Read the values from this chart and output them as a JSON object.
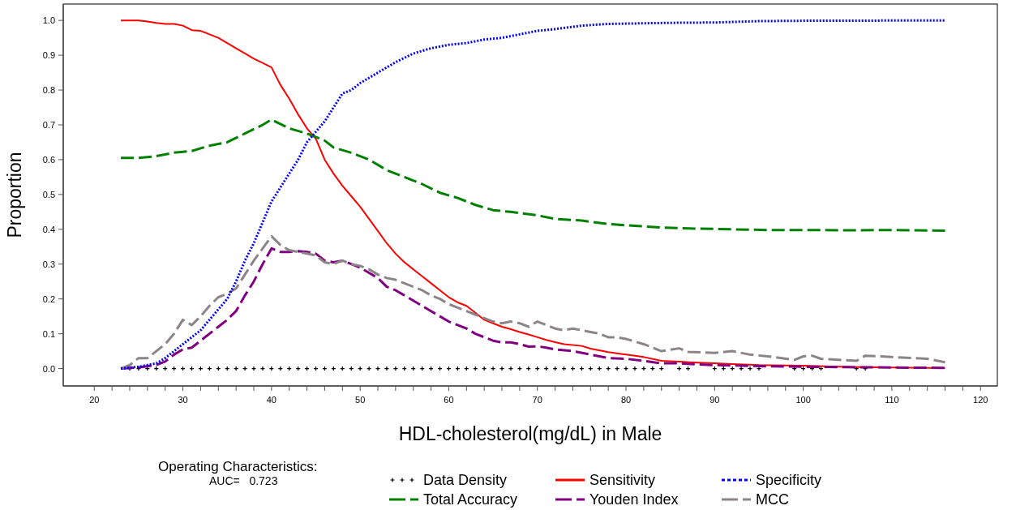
{
  "chart_data": {
    "type": "line",
    "xlabel": "HDL-cholesterol(mg/dL) in Male",
    "ylabel": "Proportion",
    "xlim": [
      16.5,
      121.9
    ],
    "ylim": [
      -0.05,
      1.047
    ],
    "xticks": [
      20,
      {
        "value": 22,
        "label": null
      },
      {
        "value": 24,
        "label": null
      },
      {
        "value": 26,
        "label": null
      },
      {
        "value": 28,
        "label": null
      },
      30,
      {
        "value": 32,
        "label": null
      },
      {
        "value": 34,
        "label": null
      },
      {
        "value": 36,
        "label": null
      },
      {
        "value": 38,
        "label": null
      },
      40,
      {
        "value": 42,
        "label": null
      },
      {
        "value": 44,
        "label": null
      },
      {
        "value": 46,
        "label": null
      },
      {
        "value": 48,
        "label": null
      },
      50,
      {
        "value": 52,
        "label": null
      },
      {
        "value": 54,
        "label": null
      },
      {
        "value": 56,
        "label": null
      },
      {
        "value": 58,
        "label": null
      },
      60,
      {
        "value": 62,
        "label": null
      },
      {
        "value": 64,
        "label": null
      },
      {
        "value": 66,
        "label": null
      },
      {
        "value": 68,
        "label": null
      },
      70,
      {
        "value": 72,
        "label": null
      },
      {
        "value": 74,
        "label": null
      },
      {
        "value": 76,
        "label": null
      },
      {
        "value": 78,
        "label": null
      },
      80,
      {
        "value": 82,
        "label": null
      },
      {
        "value": 84,
        "label": null
      },
      {
        "value": 86,
        "label": null
      },
      {
        "value": 88,
        "label": null
      },
      90,
      {
        "value": 92,
        "label": null
      },
      {
        "value": 94,
        "label": null
      },
      {
        "value": 96,
        "label": null
      },
      {
        "value": 98,
        "label": null
      },
      100,
      {
        "value": 102,
        "label": null
      },
      {
        "value": 104,
        "label": null
      },
      {
        "value": 106,
        "label": null
      },
      {
        "value": 108,
        "label": null
      },
      110,
      {
        "value": 112,
        "label": null
      },
      {
        "value": 114,
        "label": null
      },
      {
        "value": 116,
        "label": null
      },
      {
        "value": 118,
        "label": null
      },
      120
    ],
    "yticks": [
      {
        "value": 0,
        "label": "0.0"
      },
      0.1,
      0.2,
      0.3,
      0.4,
      0.5,
      0.6,
      0.7,
      0.8,
      0.9,
      {
        "value": 1,
        "label": "1.0"
      }
    ],
    "legend": "bottom",
    "annotations": [
      "Operating Characteristics:",
      "AUC=   0.723"
    ],
    "series": [
      {
        "name": "Data Density",
        "type": "scatter",
        "marker": "cross",
        "color": "#000000",
        "x": [
          24,
          25,
          26,
          27,
          28,
          29,
          30,
          31,
          32,
          33,
          34,
          35,
          36,
          37,
          38,
          39,
          40,
          41,
          42,
          43,
          44,
          45,
          46,
          47,
          48,
          49,
          50,
          51,
          52,
          53,
          54,
          55,
          56,
          57,
          58,
          59,
          60,
          61,
          62,
          63,
          64,
          65,
          66,
          67,
          68,
          69,
          70,
          71,
          72,
          73,
          74,
          75,
          76,
          77,
          78,
          79,
          80,
          81,
          82,
          83,
          84,
          86,
          87,
          90,
          91,
          92,
          93,
          94,
          95,
          99,
          100,
          101,
          102,
          106,
          107
        ],
        "values": [
          0,
          0,
          0,
          0,
          0,
          0,
          0,
          0,
          0,
          0,
          0,
          0,
          0,
          0,
          0,
          0,
          0,
          0,
          0,
          0,
          0,
          0,
          0,
          0,
          0,
          0,
          0,
          0,
          0,
          0,
          0,
          0,
          0,
          0,
          0,
          0,
          0,
          0,
          0,
          0,
          0,
          0,
          0,
          0,
          0,
          0,
          0,
          0,
          0,
          0,
          0,
          0,
          0,
          0,
          0,
          0,
          0,
          0,
          0,
          0,
          0,
          0,
          0,
          0,
          0,
          0,
          0,
          0,
          0,
          0,
          0,
          0,
          0,
          0,
          0
        ]
      },
      {
        "name": "Sensitivity",
        "color": "#ff0000",
        "line_style": "solid",
        "x": [
          23,
          25,
          26,
          27,
          28,
          29,
          30,
          31,
          32,
          33,
          34,
          35,
          36,
          37,
          38,
          39,
          40,
          41,
          42,
          43,
          44,
          45,
          46,
          47,
          48,
          49,
          50,
          51,
          52,
          53,
          54,
          55,
          56,
          57,
          58,
          59,
          60,
          61,
          62,
          63,
          64,
          65,
          66,
          67,
          68,
          69,
          70,
          71,
          72,
          73,
          75,
          76,
          78,
          80,
          82,
          84,
          86,
          88,
          90,
          92,
          95,
          100,
          105,
          110,
          116
        ],
        "values": [
          1.0,
          1.0,
          0.997,
          0.993,
          0.99,
          0.99,
          0.985,
          0.972,
          0.97,
          0.96,
          0.95,
          0.935,
          0.92,
          0.905,
          0.89,
          0.878,
          0.865,
          0.815,
          0.775,
          0.73,
          0.69,
          0.66,
          0.6,
          0.56,
          0.525,
          0.495,
          0.465,
          0.43,
          0.395,
          0.36,
          0.33,
          0.305,
          0.285,
          0.265,
          0.245,
          0.225,
          0.205,
          0.19,
          0.18,
          0.16,
          0.14,
          0.13,
          0.12,
          0.113,
          0.105,
          0.098,
          0.09,
          0.082,
          0.076,
          0.07,
          0.065,
          0.057,
          0.047,
          0.04,
          0.033,
          0.022,
          0.02,
          0.017,
          0.015,
          0.013,
          0.01,
          0.008,
          0.005,
          0.003,
          0.001
        ]
      },
      {
        "name": "Specificity",
        "color": "#0000ff",
        "line_style": "dotted",
        "x": [
          23,
          25,
          27,
          28,
          29,
          30,
          31,
          32,
          33,
          34,
          35,
          36,
          37,
          38,
          39,
          40,
          41,
          42,
          43,
          44,
          45,
          46,
          47,
          48,
          49,
          50,
          52,
          54,
          56,
          58,
          60,
          62,
          64,
          66,
          68,
          70,
          72,
          75,
          78,
          85,
          90,
          95,
          100,
          116
        ],
        "values": [
          0,
          0.005,
          0.015,
          0.03,
          0.05,
          0.07,
          0.09,
          0.11,
          0.14,
          0.17,
          0.2,
          0.25,
          0.31,
          0.36,
          0.42,
          0.48,
          0.52,
          0.56,
          0.6,
          0.65,
          0.68,
          0.71,
          0.75,
          0.79,
          0.8,
          0.82,
          0.85,
          0.88,
          0.905,
          0.92,
          0.93,
          0.935,
          0.945,
          0.95,
          0.96,
          0.97,
          0.975,
          0.985,
          0.99,
          0.993,
          0.994,
          0.998,
          0.999,
          1.0
        ]
      },
      {
        "name": "Total Accuracy",
        "color": "#008000",
        "line_style": "dashed",
        "x": [
          23,
          25,
          27,
          29,
          31,
          33,
          35,
          37,
          39,
          40,
          42,
          44,
          46,
          47,
          49,
          51,
          53,
          55,
          57,
          59,
          61,
          63,
          65,
          67,
          70,
          72,
          75,
          78,
          81,
          84,
          88,
          92,
          96,
          100,
          106,
          110,
          116
        ],
        "values": [
          0.605,
          0.605,
          0.61,
          0.62,
          0.625,
          0.64,
          0.65,
          0.675,
          0.7,
          0.715,
          0.69,
          0.675,
          0.655,
          0.635,
          0.62,
          0.6,
          0.57,
          0.55,
          0.53,
          0.505,
          0.49,
          0.47,
          0.455,
          0.45,
          0.44,
          0.43,
          0.425,
          0.415,
          0.41,
          0.405,
          0.402,
          0.4,
          0.398,
          0.398,
          0.397,
          0.398,
          0.396
        ]
      },
      {
        "name": "Youden Index",
        "color": "#800080",
        "line_style": "dashed",
        "x": [
          23,
          25,
          27,
          28,
          29,
          30,
          31,
          32,
          33,
          34,
          35,
          36,
          37,
          38,
          39,
          40,
          41,
          42,
          43,
          44,
          45,
          46,
          47,
          48,
          49,
          50,
          51,
          52,
          53,
          54,
          55,
          56,
          57,
          58,
          59,
          60,
          61,
          62,
          63,
          64,
          65,
          66,
          67,
          68,
          69,
          70,
          71,
          72,
          74,
          76,
          78,
          80,
          82,
          84,
          86,
          88,
          90,
          95,
          100,
          105,
          110,
          116
        ],
        "values": [
          0,
          0.003,
          0.01,
          0.02,
          0.04,
          0.055,
          0.06,
          0.08,
          0.1,
          0.12,
          0.14,
          0.165,
          0.21,
          0.25,
          0.3,
          0.345,
          0.335,
          0.335,
          0.337,
          0.335,
          0.33,
          0.31,
          0.305,
          0.31,
          0.3,
          0.29,
          0.275,
          0.26,
          0.235,
          0.225,
          0.21,
          0.195,
          0.18,
          0.165,
          0.15,
          0.135,
          0.125,
          0.115,
          0.1,
          0.09,
          0.08,
          0.075,
          0.075,
          0.07,
          0.063,
          0.064,
          0.06,
          0.055,
          0.05,
          0.04,
          0.03,
          0.028,
          0.022,
          0.015,
          0.015,
          0.012,
          0.01,
          0.007,
          0.005,
          0.004,
          0.003,
          0.002
        ]
      },
      {
        "name": "MCC",
        "color": "#8c8489",
        "line_style": "dashed",
        "x": [
          23,
          24,
          25,
          26,
          27,
          28,
          29,
          30,
          31,
          32,
          33,
          34,
          35,
          36,
          37,
          38,
          39,
          40,
          41,
          42,
          43,
          44,
          45,
          46,
          47,
          48,
          49,
          50,
          51,
          52,
          53,
          54,
          55,
          56,
          57,
          58,
          59,
          60,
          61,
          62,
          63,
          64,
          65,
          66,
          67,
          68,
          69,
          70,
          71,
          72,
          73,
          74,
          75,
          76,
          77,
          78,
          79,
          80,
          82,
          84,
          86,
          87,
          90,
          92,
          94,
          96,
          99,
          100,
          101,
          102,
          106,
          107,
          110,
          114,
          116
        ],
        "values": [
          0,
          0.01,
          0.03,
          0.03,
          0.05,
          0.07,
          0.1,
          0.14,
          0.125,
          0.15,
          0.18,
          0.205,
          0.215,
          0.23,
          0.27,
          0.31,
          0.345,
          0.38,
          0.355,
          0.34,
          0.335,
          0.33,
          0.325,
          0.305,
          0.3,
          0.31,
          0.3,
          0.295,
          0.285,
          0.27,
          0.26,
          0.255,
          0.245,
          0.235,
          0.225,
          0.21,
          0.2,
          0.185,
          0.175,
          0.165,
          0.155,
          0.145,
          0.135,
          0.13,
          0.135,
          0.13,
          0.12,
          0.135,
          0.125,
          0.115,
          0.11,
          0.115,
          0.11,
          0.105,
          0.1,
          0.09,
          0.09,
          0.085,
          0.07,
          0.05,
          0.058,
          0.048,
          0.045,
          0.05,
          0.04,
          0.035,
          0.025,
          0.035,
          0.037,
          0.028,
          0.022,
          0.037,
          0.033,
          0.028,
          0.018
        ]
      }
    ]
  }
}
